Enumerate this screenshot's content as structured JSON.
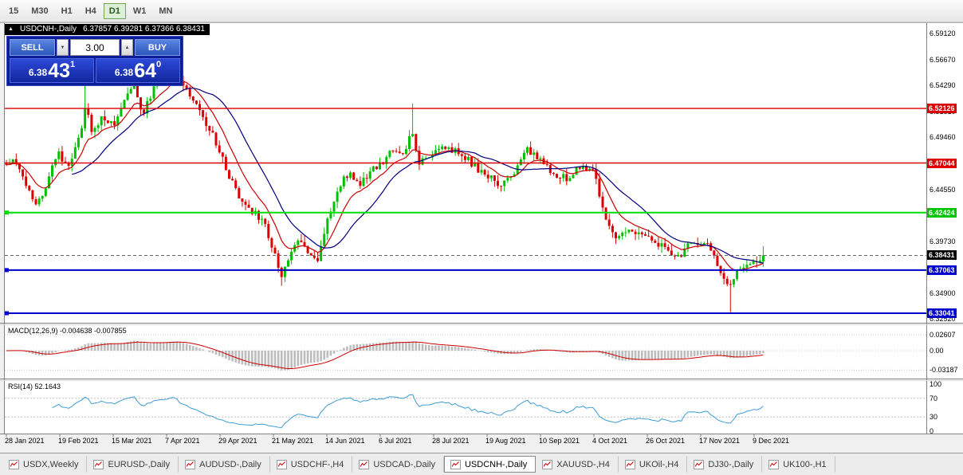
{
  "toolbar": {
    "timeframes": [
      "15",
      "M30",
      "H1",
      "H4",
      "D1",
      "W1",
      "MN"
    ],
    "active_timeframe": "D1"
  },
  "chart_header": {
    "collapse_icon": "▲",
    "symbol": "USDCNH-,Daily",
    "ohlc": "6.37857 6.39281 6.37366 6.38431"
  },
  "trade_panel": {
    "sell_label": "SELL",
    "buy_label": "BUY",
    "volume": "3.00",
    "spinner_up": "▲",
    "spinner_down": "▼",
    "sell_price": {
      "small": "6.38",
      "large": "43",
      "sup": "1"
    },
    "buy_price": {
      "small": "6.38",
      "large": "64",
      "sup": "0"
    }
  },
  "price_axis": {
    "plain_labels": [
      {
        "text": "6.59120",
        "price": 6.5912
      },
      {
        "text": "6.56670",
        "price": 6.5667
      },
      {
        "text": "6.54290",
        "price": 6.5429
      },
      {
        "text": "6.51810",
        "price": 6.5181
      },
      {
        "text": "6.49460",
        "price": 6.4946
      },
      {
        "text": "6.44550",
        "price": 6.4455
      },
      {
        "text": "6.39730",
        "price": 6.3973
      },
      {
        "text": "6.34900",
        "price": 6.349
      },
      {
        "text": "6.32520",
        "price": 6.3252
      }
    ],
    "line_labels": [
      {
        "text": "6.52126",
        "price": 6.52126,
        "bg": "#dd0000"
      },
      {
        "text": "6.47044",
        "price": 6.47044,
        "bg": "#dd0000"
      },
      {
        "text": "6.42424",
        "price": 6.42424,
        "bg": "#00c400"
      },
      {
        "text": "6.38431",
        "price": 6.38431,
        "bg": "#000000"
      },
      {
        "text": "6.37063",
        "price": 6.37063,
        "bg": "#0000cc"
      },
      {
        "text": "6.33041",
        "price": 6.33041,
        "bg": "#0000cc"
      }
    ]
  },
  "indicators": {
    "macd": {
      "label": "MACD(12,26,9) -0.004638 -0.007855",
      "axis": [
        {
          "text": "0.02607",
          "value": 0.02607
        },
        {
          "text": "0.00",
          "value": 0
        },
        {
          "text": "-0.03187",
          "value": -0.03187
        }
      ]
    },
    "rsi": {
      "label": "RSI(14) 52.1643",
      "axis": [
        {
          "text": "100",
          "value": 100
        },
        {
          "text": "70",
          "value": 70
        },
        {
          "text": "30",
          "value": 30
        },
        {
          "text": "0",
          "value": 0
        }
      ],
      "levels": [
        70,
        30
      ]
    }
  },
  "date_axis": {
    "labels": [
      "28 Jan 2021",
      "19 Feb 2021",
      "15 Mar 2021",
      "7 Apr 2021",
      "29 Apr 2021",
      "21 May 2021",
      "14 Jun 2021",
      "6 Jul 2021",
      "28 Jul 2021",
      "19 Aug 2021",
      "10 Sep 2021",
      "4 Oct 2021",
      "26 Oct 2021",
      "17 Nov 2021",
      "9 Dec 2021"
    ]
  },
  "tabs": {
    "items": [
      {
        "label": "USDX,Weekly",
        "active": false
      },
      {
        "label": "EURUSD-,Daily",
        "active": false
      },
      {
        "label": "AUDUSD-,Daily",
        "active": false
      },
      {
        "label": "USDCHF-,H4",
        "active": false
      },
      {
        "label": "USDCAD-,Daily",
        "active": false
      },
      {
        "label": "USDCNH-,Daily",
        "active": true
      },
      {
        "label": "XAUUSD-,H4",
        "active": false
      },
      {
        "label": "UKOil-,H4",
        "active": false
      },
      {
        "label": "DJ30-,Daily",
        "active": false
      },
      {
        "label": "UK100-,H1",
        "active": false
      }
    ]
  },
  "chart_data": {
    "type": "candlestick",
    "title": "USDCNH-,Daily",
    "ohlc_last": {
      "open": 6.37857,
      "high": 6.39281,
      "low": 6.37366,
      "close": 6.38431
    },
    "visible_price_range": [
      6.3215,
      6.6016
    ],
    "candle_up_color": "#00c000",
    "candle_down_color": "#dd0000",
    "ma_fast_color": "#cc0000",
    "ma_slow_color": "#000080",
    "current_price": 6.38431,
    "horizontal_lines": [
      {
        "price": 6.52126,
        "color": "#dd0000",
        "width": 1.4,
        "handles": false
      },
      {
        "price": 6.47044,
        "color": "#dd0000",
        "width": 1.4,
        "handles": false
      },
      {
        "price": 6.42424,
        "color": "#00dd00",
        "width": 2,
        "handles": true
      },
      {
        "price": 6.37063,
        "color": "#0000cc",
        "width": 2,
        "handles": true
      },
      {
        "price": 6.33041,
        "color": "#0000cc",
        "width": 2,
        "handles": true
      }
    ],
    "price_path": [
      [
        0.0,
        6.47
      ],
      [
        0.011,
        6.477
      ],
      [
        0.023,
        6.452
      ],
      [
        0.039,
        6.43
      ],
      [
        0.053,
        6.448
      ],
      [
        0.067,
        6.48
      ],
      [
        0.081,
        6.468
      ],
      [
        0.095,
        6.492
      ],
      [
        0.105,
        6.522
      ],
      [
        0.114,
        6.498
      ],
      [
        0.128,
        6.515
      ],
      [
        0.141,
        6.505
      ],
      [
        0.155,
        6.528
      ],
      [
        0.168,
        6.545
      ],
      [
        0.179,
        6.515
      ],
      [
        0.194,
        6.538
      ],
      [
        0.207,
        6.55
      ],
      [
        0.221,
        6.56
      ],
      [
        0.236,
        6.54
      ],
      [
        0.253,
        6.52
      ],
      [
        0.267,
        6.505
      ],
      [
        0.284,
        6.478
      ],
      [
        0.302,
        6.445
      ],
      [
        0.32,
        6.428
      ],
      [
        0.339,
        6.418
      ],
      [
        0.352,
        6.392
      ],
      [
        0.362,
        6.363
      ],
      [
        0.373,
        6.382
      ],
      [
        0.386,
        6.4
      ],
      [
        0.4,
        6.388
      ],
      [
        0.411,
        6.38
      ],
      [
        0.425,
        6.42
      ],
      [
        0.439,
        6.448
      ],
      [
        0.453,
        6.462
      ],
      [
        0.467,
        6.452
      ],
      [
        0.481,
        6.462
      ],
      [
        0.495,
        6.47
      ],
      [
        0.509,
        6.482
      ],
      [
        0.523,
        6.475
      ],
      [
        0.536,
        6.5
      ],
      [
        0.546,
        6.47
      ],
      [
        0.56,
        6.478
      ],
      [
        0.576,
        6.488
      ],
      [
        0.589,
        6.482
      ],
      [
        0.604,
        6.478
      ],
      [
        0.621,
        6.466
      ],
      [
        0.639,
        6.456
      ],
      [
        0.657,
        6.45
      ],
      [
        0.671,
        6.462
      ],
      [
        0.686,
        6.484
      ],
      [
        0.699,
        6.477
      ],
      [
        0.716,
        6.465
      ],
      [
        0.731,
        6.458
      ],
      [
        0.745,
        6.455
      ],
      [
        0.76,
        6.47
      ],
      [
        0.776,
        6.462
      ],
      [
        0.789,
        6.425
      ],
      [
        0.804,
        6.402
      ],
      [
        0.821,
        6.41
      ],
      [
        0.839,
        6.402
      ],
      [
        0.855,
        6.398
      ],
      [
        0.871,
        6.39
      ],
      [
        0.884,
        6.38
      ],
      [
        0.899,
        6.392
      ],
      [
        0.916,
        6.397
      ],
      [
        0.931,
        6.39
      ],
      [
        0.944,
        6.37
      ],
      [
        0.955,
        6.352
      ],
      [
        0.965,
        6.372
      ],
      [
        0.979,
        6.377
      ],
      [
        1.0,
        6.384
      ]
    ],
    "notable_highs": [
      [
        0.105,
        6.556
      ],
      [
        0.221,
        6.571
      ],
      [
        0.536,
        6.526
      ]
    ],
    "notable_lows": [
      [
        0.362,
        6.356
      ],
      [
        0.955,
        6.3315
      ]
    ],
    "macd_values": {
      "main": -0.004638,
      "signal": -0.007855,
      "scale_top": 0.02607,
      "scale_bottom": -0.03187
    },
    "rsi_value": 52.1643
  }
}
